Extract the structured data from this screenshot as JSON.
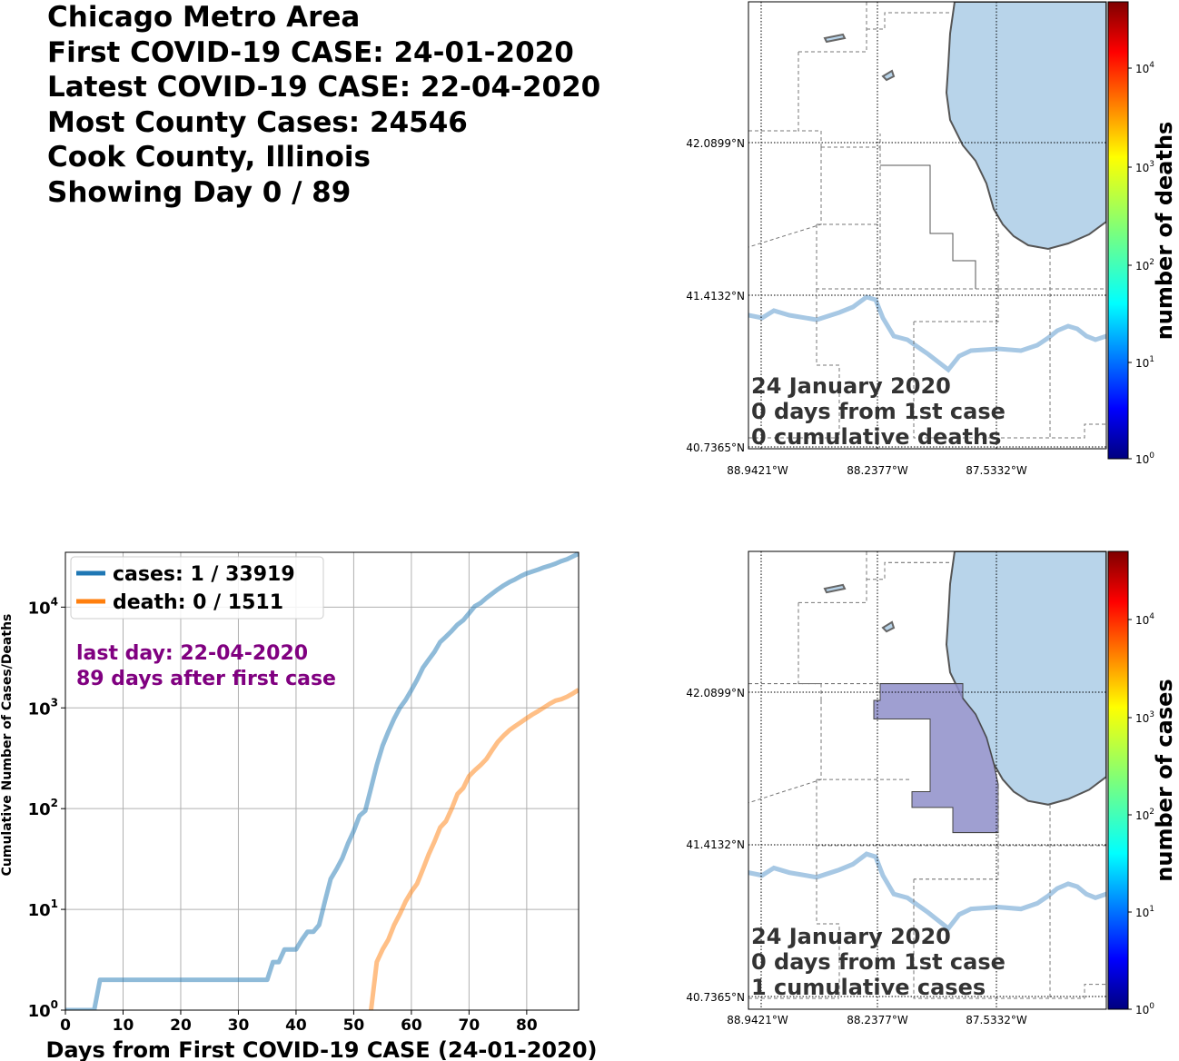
{
  "header": {
    "lines": [
      "Chicago Metro Area",
      "First COVID-19 CASE: 24-01-2020",
      "Latest COVID-19 CASE: 22-04-2020",
      "Most County Cases: 24546",
      "Cook County, Illinois",
      "Showing Day 0 / 89"
    ]
  },
  "maps": [
    {
      "id": "deaths",
      "date_text": "24 January 2020",
      "days_text": "0 days from 1st case",
      "cumulative_text": "0 cumulative deaths",
      "colorbar_label": "number of deaths",
      "lat_ticks": [
        "42.0899°N",
        "41.4132°N",
        "40.7365°N"
      ],
      "lon_ticks": [
        "88.9421°W",
        "88.2377°W",
        "87.5332°W"
      ],
      "colorbar_ticks": [
        {
          "base": "10",
          "exp": "4"
        },
        {
          "base": "10",
          "exp": "3"
        },
        {
          "base": "10",
          "exp": "2"
        },
        {
          "base": "10",
          "exp": "1"
        },
        {
          "base": "10",
          "exp": "0"
        }
      ],
      "highlighted_county": false
    },
    {
      "id": "cases",
      "date_text": "24 January 2020",
      "days_text": "0 days from 1st case",
      "cumulative_text": "1 cumulative cases",
      "colorbar_label": "number of cases",
      "lat_ticks": [
        "42.0899°N",
        "41.4132°N",
        "40.7365°N"
      ],
      "lon_ticks": [
        "88.9421°W",
        "88.2377°W",
        "87.5332°W"
      ],
      "colorbar_ticks": [
        {
          "base": "10",
          "exp": "4"
        },
        {
          "base": "10",
          "exp": "3"
        },
        {
          "base": "10",
          "exp": "2"
        },
        {
          "base": "10",
          "exp": "1"
        },
        {
          "base": "10",
          "exp": "0"
        }
      ],
      "highlighted_county": true
    }
  ],
  "chart_data": {
    "type": "line",
    "xlabel": "Days from First COVID-19 CASE (24-01-2020)",
    "ylabel": "Cumulative Number of Cases/Deaths",
    "xlim": [
      0,
      89
    ],
    "ylim": [
      1,
      35000
    ],
    "y_scale": "log",
    "grid": true,
    "legend_position": "top-left",
    "x_ticks": [
      "0",
      "10",
      "20",
      "30",
      "40",
      "50",
      "60",
      "70",
      "80"
    ],
    "y_ticks": [
      {
        "base": "10",
        "exp": "0"
      },
      {
        "base": "10",
        "exp": "1"
      },
      {
        "base": "10",
        "exp": "2"
      },
      {
        "base": "10",
        "exp": "3"
      },
      {
        "base": "10",
        "exp": "4"
      }
    ],
    "annotation": {
      "line1": "last day: 22-04-2020",
      "line2": "89 days after first case",
      "color": "#800080"
    },
    "series": [
      {
        "name": "cases: 1 / 33919",
        "color": "#1f77b4",
        "x": [
          0,
          5,
          6,
          10,
          20,
          30,
          35,
          36,
          37,
          38,
          40,
          41,
          42,
          43,
          44,
          45,
          46,
          47,
          48,
          49,
          50,
          51,
          52,
          53,
          54,
          55,
          56,
          57,
          58,
          59,
          60,
          61,
          62,
          63,
          64,
          65,
          66,
          67,
          68,
          69,
          70,
          71,
          72,
          73,
          74,
          75,
          76,
          77,
          78,
          79,
          80,
          81,
          82,
          83,
          84,
          85,
          86,
          87,
          88,
          89
        ],
        "y": [
          1,
          1,
          2,
          2,
          2,
          2,
          2,
          3,
          3,
          4,
          4,
          5,
          6,
          6,
          7,
          12,
          20,
          25,
          32,
          45,
          60,
          85,
          95,
          160,
          270,
          420,
          580,
          780,
          1000,
          1200,
          1500,
          1900,
          2500,
          3000,
          3600,
          4500,
          5100,
          5800,
          6700,
          7400,
          8700,
          10200,
          11000,
          12300,
          13600,
          15000,
          16400,
          17700,
          18900,
          20300,
          21600,
          22600,
          23600,
          24800,
          25800,
          27000,
          28600,
          29900,
          31900,
          33919
        ]
      },
      {
        "name": "death: 0 / 1511",
        "color": "#ff7f0e",
        "x": [
          53,
          54,
          55,
          56,
          57,
          58,
          59,
          60,
          61,
          62,
          63,
          64,
          65,
          66,
          67,
          68,
          69,
          70,
          71,
          72,
          73,
          74,
          75,
          76,
          77,
          78,
          79,
          80,
          81,
          82,
          83,
          84,
          85,
          86,
          87,
          88,
          89
        ],
        "y": [
          1,
          3,
          4,
          5,
          7,
          9,
          12,
          15,
          18,
          25,
          35,
          47,
          65,
          75,
          100,
          140,
          160,
          210,
          240,
          270,
          310,
          380,
          460,
          530,
          600,
          660,
          720,
          790,
          860,
          930,
          1010,
          1100,
          1180,
          1220,
          1290,
          1390,
          1511
        ]
      }
    ]
  }
}
